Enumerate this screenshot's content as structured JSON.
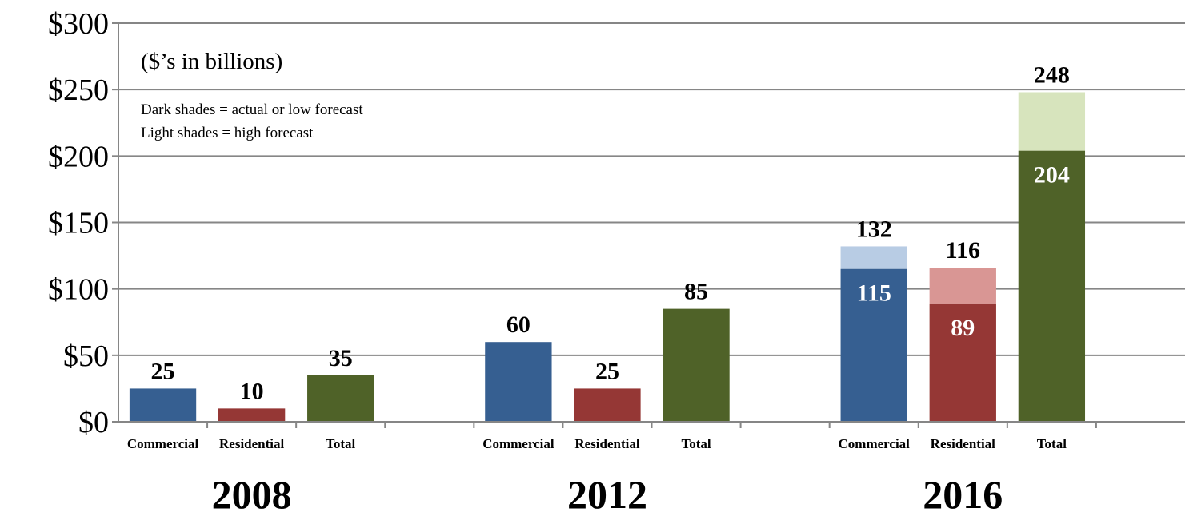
{
  "chart_data": {
    "type": "bar",
    "stacked": true,
    "ylim": [
      0,
      300
    ],
    "yticks": [
      0,
      50,
      100,
      150,
      200,
      250,
      300
    ],
    "ytick_labels": [
      "$0",
      "$50",
      "$100",
      "$150",
      "$200",
      "$250",
      "$300"
    ],
    "grid": true,
    "unit_note": "($’s in billions)",
    "legend_notes": [
      "Dark shades = actual or low forecast",
      "Light shades = high forecast"
    ],
    "groups": [
      {
        "label": "2008",
        "bars": [
          {
            "category": "Commercial",
            "actual_or_low": 25,
            "high": null,
            "color": "#365f91",
            "light_color": "#b8cce4"
          },
          {
            "category": "Residential",
            "actual_or_low": 10,
            "high": null,
            "color": "#953735",
            "light_color": "#d99694"
          },
          {
            "category": "Total",
            "actual_or_low": 35,
            "high": null,
            "color": "#4f6228",
            "light_color": "#d7e4bd"
          }
        ]
      },
      {
        "label": "2012",
        "bars": [
          {
            "category": "Commercial",
            "actual_or_low": 60,
            "high": null,
            "color": "#365f91",
            "light_color": "#b8cce4"
          },
          {
            "category": "Residential",
            "actual_or_low": 25,
            "high": null,
            "color": "#953735",
            "light_color": "#d99694"
          },
          {
            "category": "Total",
            "actual_or_low": 85,
            "high": null,
            "color": "#4f6228",
            "light_color": "#d7e4bd"
          }
        ]
      },
      {
        "label": "2016",
        "bars": [
          {
            "category": "Commercial",
            "actual_or_low": 115,
            "high": 132,
            "color": "#365f91",
            "light_color": "#b8cce4"
          },
          {
            "category": "Residential",
            "actual_or_low": 89,
            "high": 116,
            "color": "#953735",
            "light_color": "#d99694"
          },
          {
            "category": "Total",
            "actual_or_low": 204,
            "high": 248,
            "color": "#4f6228",
            "light_color": "#d7e4bd"
          }
        ]
      }
    ]
  }
}
